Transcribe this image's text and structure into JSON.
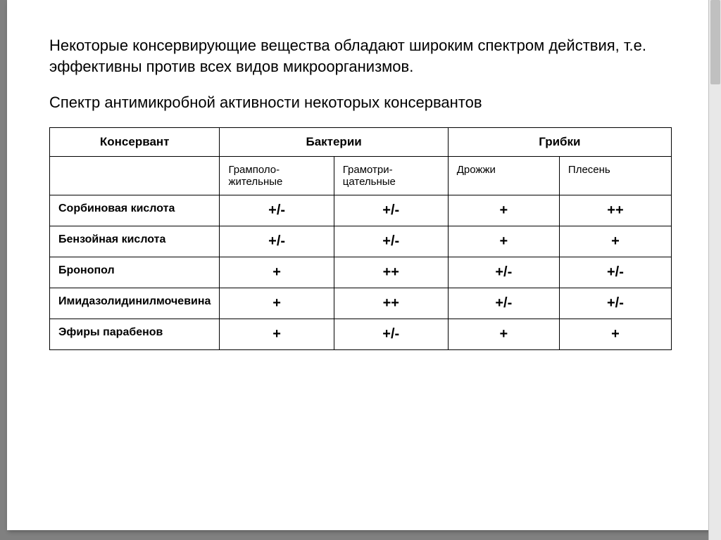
{
  "intro": "Некоторые консервирующие вещества обладают широким спектром действия, т.е. эффективны против всех видов микроорганизмов.",
  "subtitle": "Спектр антимикробной активности некоторых консервантов",
  "table": {
    "header_main": [
      "Консервант",
      "Бактерии",
      "Грибки"
    ],
    "header_sub": [
      "",
      "Грамполо-жительные",
      "Грамотри-цательные",
      "Дрожжи",
      "Плесень"
    ],
    "rows": [
      {
        "label": "Сорбиновая кислота",
        "values": [
          "+/-",
          "+/-",
          "+",
          "++"
        ]
      },
      {
        "label": "Бензойная кислота",
        "values": [
          "+/-",
          "+/-",
          "+",
          "+"
        ]
      },
      {
        "label": "Бронопол",
        "values": [
          "+",
          "++",
          "+/-",
          "+/-"
        ]
      },
      {
        "label": "Имидазолидинилмочевина",
        "values": [
          "+",
          "++",
          "+/-",
          "+/-"
        ]
      },
      {
        "label": "Эфиры парабенов",
        "values": [
          "+",
          "+/-",
          "+",
          "+"
        ]
      }
    ]
  },
  "styling": {
    "background_outer": "#808080",
    "background_slide": "#ffffff",
    "text_color": "#000000",
    "border_color": "#000000",
    "intro_fontsize": 22,
    "subtitle_fontsize": 22,
    "header_fontsize": 17,
    "subheader_fontsize": 15,
    "rowlabel_fontsize": 16,
    "cellvalue_fontsize": 20,
    "slide_width": 1004,
    "slide_height": 754
  }
}
